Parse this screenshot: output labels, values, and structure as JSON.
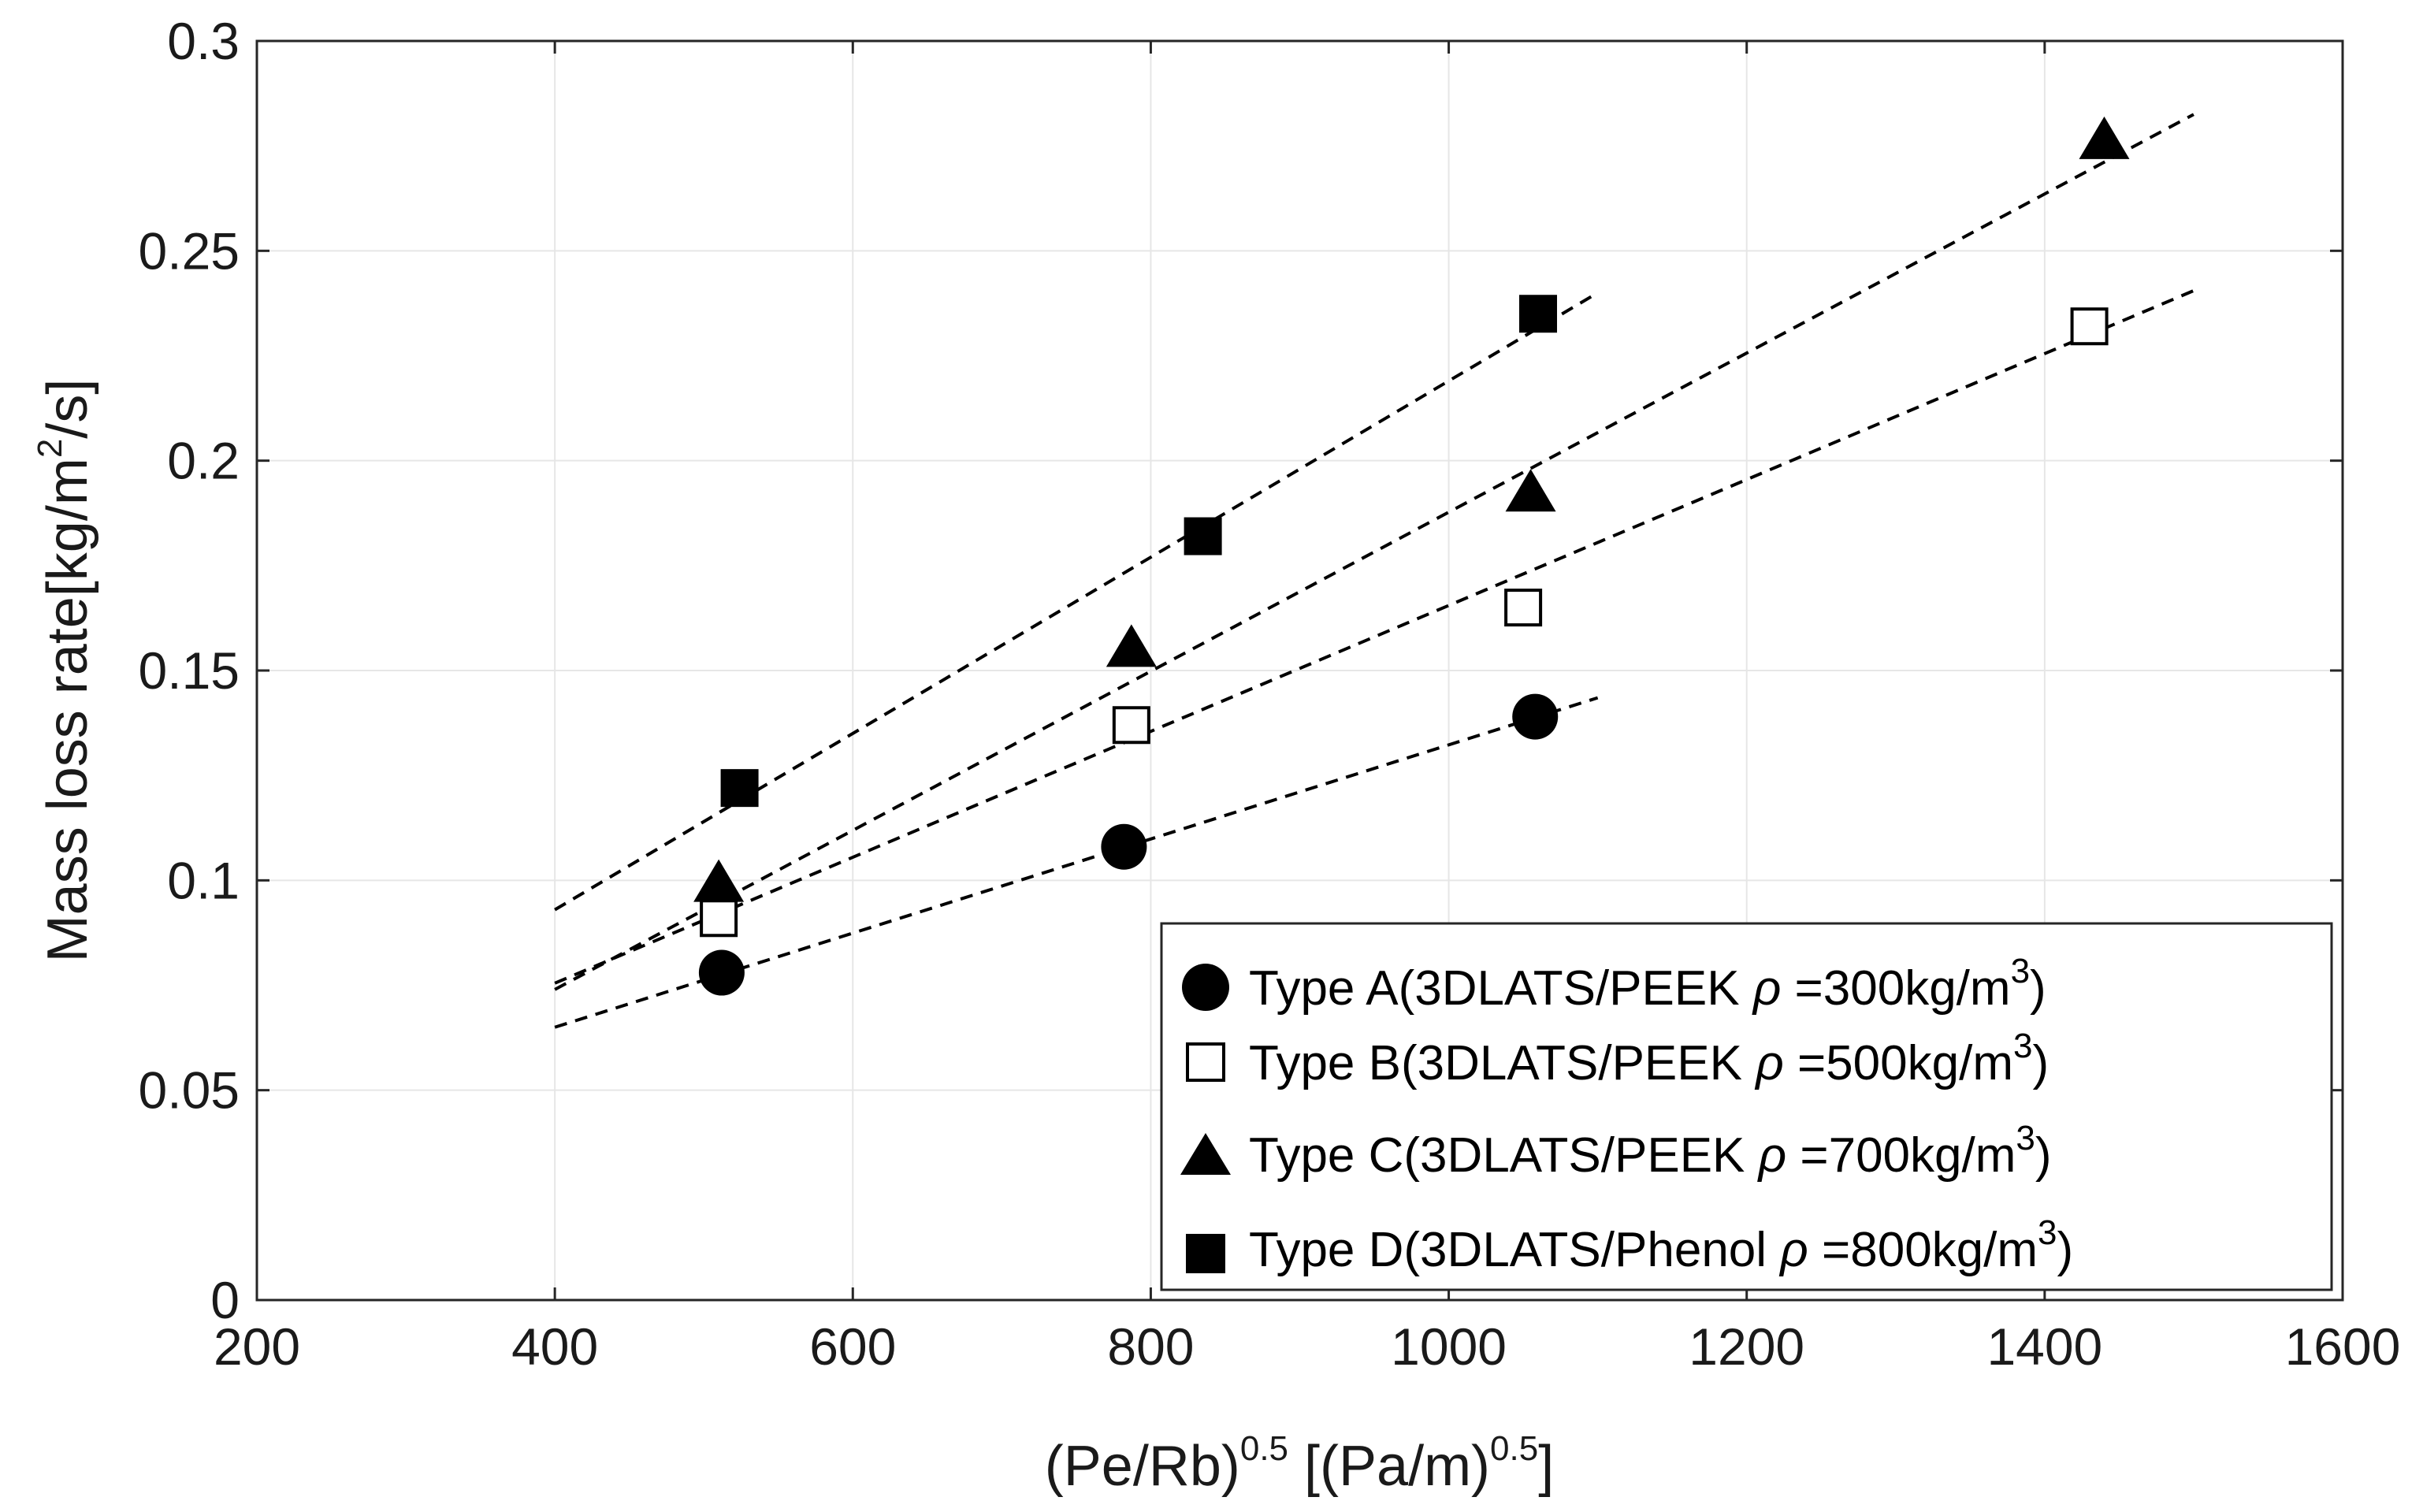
{
  "chart_data": {
    "type": "scatter",
    "xlabel": {
      "base": "(Pe/Rb)",
      "base_exp": "0.5",
      "unit_open": " [(Pa/m)",
      "unit_exp": "0.5",
      "unit_close": "]"
    },
    "ylabel": {
      "pre": "Mass loss rate[kg/m",
      "exp": "2",
      "post": "/s]"
    },
    "xlim": [
      200,
      1600
    ],
    "ylim": [
      0,
      0.3
    ],
    "xticks": [
      200,
      400,
      600,
      800,
      1000,
      1200,
      1400,
      1600
    ],
    "yticks": [
      0,
      0.05,
      0.1,
      0.15,
      0.2,
      0.25,
      0.3
    ],
    "xtick_labels": [
      "200",
      "400",
      "600",
      "800",
      "1000",
      "1200",
      "1400",
      "1600"
    ],
    "ytick_labels": [
      "0",
      "0.05",
      "0.1",
      "0.15",
      "0.2",
      "0.25",
      "0.3"
    ],
    "grid": true,
    "legend_position": "bottom-right",
    "series": [
      {
        "name": "Type A",
        "marker": "circle-filled",
        "label_pre": "Type A(3DLATS/PEEK ",
        "rho": "ρ",
        "label_mid": " =300kg/m",
        "label_exp": "3",
        "label_post": ")",
        "x": [
          512,
          782,
          1058
        ],
        "y": [
          0.078,
          0.108,
          0.139
        ],
        "fit_x": [
          400,
          1100
        ],
        "fit_y": [
          0.065,
          0.1435
        ]
      },
      {
        "name": "Type B",
        "marker": "square-open",
        "label_pre": "Type B(3DLATS/PEEK ",
        "rho": "ρ",
        "label_mid": " =500kg/m",
        "label_exp": "3",
        "label_post": ")",
        "x": [
          510,
          787,
          1050,
          1430
        ],
        "y": [
          0.091,
          0.137,
          0.165,
          0.232
        ],
        "fit_x": [
          400,
          1500
        ],
        "fit_y": [
          0.0755,
          0.2405
        ]
      },
      {
        "name": "Type C",
        "marker": "triangle-filled",
        "label_pre": "Type C(3DLATS/PEEK ",
        "rho": "ρ",
        "label_mid": " =700kg/m",
        "label_exp": "3",
        "label_post": ")",
        "x": [
          510,
          787,
          1055,
          1440
        ],
        "y": [
          0.099,
          0.155,
          0.192,
          0.276
        ],
        "fit_x": [
          400,
          1500
        ],
        "fit_y": [
          0.074,
          0.2825
        ]
      },
      {
        "name": "Type D",
        "marker": "square-filled",
        "label_pre": "Type D(3DLATS/Phenol ",
        "rho": "ρ",
        "label_mid": " =800kg/m",
        "label_exp": "3",
        "label_post": ")",
        "x": [
          524,
          835,
          1060
        ],
        "y": [
          0.122,
          0.182,
          0.235
        ],
        "fit_x": [
          400,
          1100
        ],
        "fit_y": [
          0.093,
          0.24
        ]
      }
    ]
  }
}
